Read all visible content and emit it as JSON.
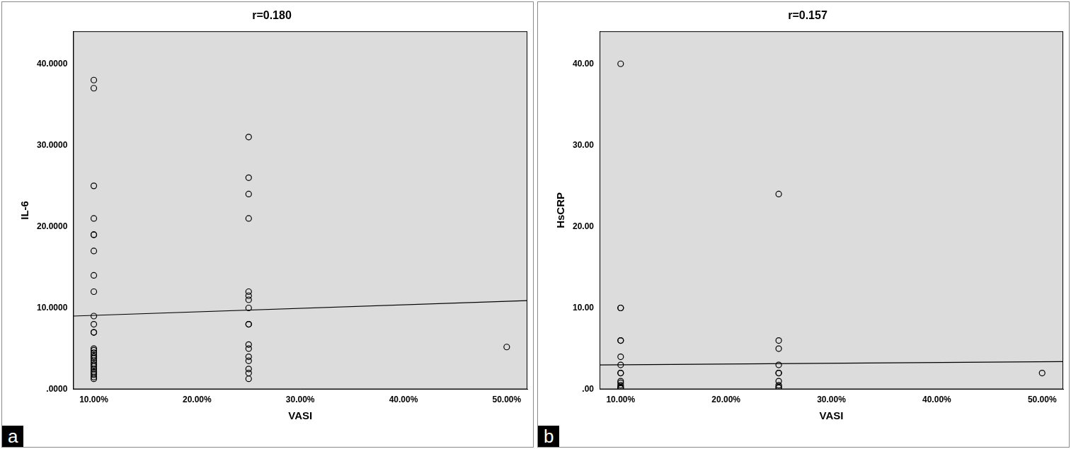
{
  "chart_data": [
    {
      "type": "scatter",
      "panel_label": "a",
      "title": "r=0.180",
      "x_label": "VASI",
      "y_label": "IL-6",
      "xlim": [
        8,
        52
      ],
      "xticks": [
        {
          "value": 10,
          "label": "10.00%"
        },
        {
          "value": 20,
          "label": "20.00%"
        },
        {
          "value": 30,
          "label": "30.00%"
        },
        {
          "value": 40,
          "label": "40.00%"
        },
        {
          "value": 50,
          "label": "50.00%"
        }
      ],
      "ylim": [
        0,
        44
      ],
      "yticks": [
        {
          "value": 0,
          "label": ".0000"
        },
        {
          "value": 10,
          "label": "10.0000"
        },
        {
          "value": 20,
          "label": "20.0000"
        },
        {
          "value": 30,
          "label": "30.0000"
        },
        {
          "value": 40,
          "label": "40.0000"
        }
      ],
      "grid": false,
      "series": [
        {
          "type": "scatter",
          "marker": "circle",
          "color": "#000000",
          "x": [
            10,
            10,
            10,
            10,
            10,
            10,
            10,
            10,
            10,
            10,
            10,
            10,
            10,
            10,
            10,
            10,
            10,
            10,
            10,
            10,
            10,
            10,
            10,
            10,
            10,
            10,
            10,
            10,
            10,
            25,
            25,
            25,
            25,
            25,
            25,
            25,
            25,
            25,
            25,
            25,
            25,
            25,
            25,
            25,
            25,
            25,
            50
          ],
          "values": [
            38,
            37,
            25,
            21,
            19,
            19,
            17,
            14,
            12,
            9,
            8,
            7,
            7,
            5,
            4.8,
            4.5,
            4.2,
            4,
            3.8,
            3.5,
            3.2,
            3,
            2.8,
            2.5,
            2.2,
            2,
            1.8,
            1.5,
            1.3,
            31,
            26,
            24,
            21,
            12,
            11.5,
            11,
            10,
            8,
            8,
            5.5,
            5,
            4,
            3.5,
            2.5,
            2,
            1.3,
            5.2
          ]
        },
        {
          "type": "line",
          "line_style": "solid",
          "color": "#000000",
          "x": [
            8,
            52
          ],
          "values": [
            9.0,
            10.9
          ]
        }
      ]
    },
    {
      "type": "scatter",
      "panel_label": "b",
      "title": "r=0.157",
      "x_label": "VASI",
      "y_label": "HsCRP",
      "xlim": [
        8,
        52
      ],
      "xticks": [
        {
          "value": 10,
          "label": "10.00%"
        },
        {
          "value": 20,
          "label": "20.00%"
        },
        {
          "value": 30,
          "label": "30.00%"
        },
        {
          "value": 40,
          "label": "40.00%"
        },
        {
          "value": 50,
          "label": "50.00%"
        }
      ],
      "ylim": [
        0,
        44
      ],
      "yticks": [
        {
          "value": 0,
          "label": ".00"
        },
        {
          "value": 10,
          "label": "10.00"
        },
        {
          "value": 20,
          "label": "20.00"
        },
        {
          "value": 30,
          "label": "30.00"
        },
        {
          "value": 40,
          "label": "40.00"
        }
      ],
      "grid": false,
      "series": [
        {
          "type": "scatter",
          "marker": "circle",
          "color": "#000000",
          "x": [
            10,
            10,
            10,
            10,
            10,
            10,
            10,
            10,
            10,
            10,
            10,
            10,
            10,
            10,
            10,
            25,
            25,
            25,
            25,
            25,
            25,
            25,
            25,
            25,
            25,
            50
          ],
          "values": [
            40,
            10,
            10,
            6,
            6,
            4,
            3,
            2,
            2,
            1,
            0.8,
            0.5,
            0.3,
            0.2,
            0.1,
            24,
            6,
            5,
            3,
            2,
            2,
            1,
            0.5,
            0.3,
            0.2,
            2
          ]
        },
        {
          "type": "line",
          "line_style": "solid",
          "color": "#000000",
          "x": [
            8,
            52
          ],
          "values": [
            3.0,
            3.4
          ]
        }
      ]
    }
  ]
}
